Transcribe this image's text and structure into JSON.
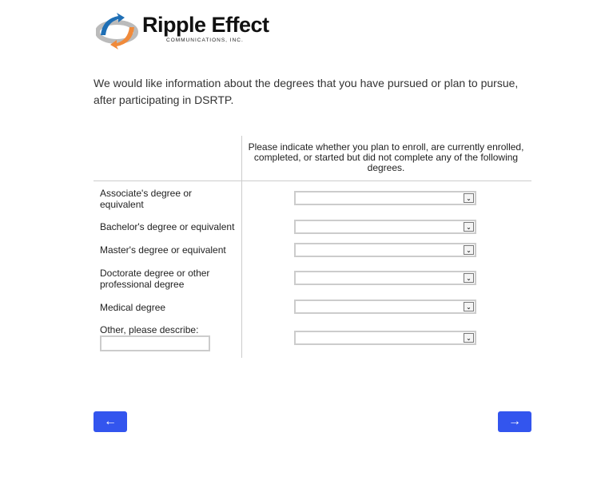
{
  "logo": {
    "title": "Ripple Effect",
    "subtitle": "COMMUNICATIONS, INC.",
    "colors": {
      "blue": "#1f6fb5",
      "orange": "#f08a3a",
      "gray": "#bbbbbb"
    }
  },
  "intro": "We would like information about the degrees that you have pursued or plan to pursue, after participating in DSRTP.",
  "column_header": "Please indicate whether you plan to enroll, are currently enrolled, completed, or started but did not complete any of the following degrees.",
  "rows": [
    {
      "label": "Associate's degree or equivalent",
      "value": ""
    },
    {
      "label": "Bachelor's degree or equivalent",
      "value": ""
    },
    {
      "label": "Master's degree or equivalent",
      "value": ""
    },
    {
      "label": "Doctorate degree or other professional degree",
      "value": ""
    },
    {
      "label": "Medical degree",
      "value": ""
    },
    {
      "label": "Other, please describe:",
      "value": "",
      "text_value": ""
    }
  ],
  "nav": {
    "back": "←",
    "next": "→",
    "color": "#3355ee"
  }
}
